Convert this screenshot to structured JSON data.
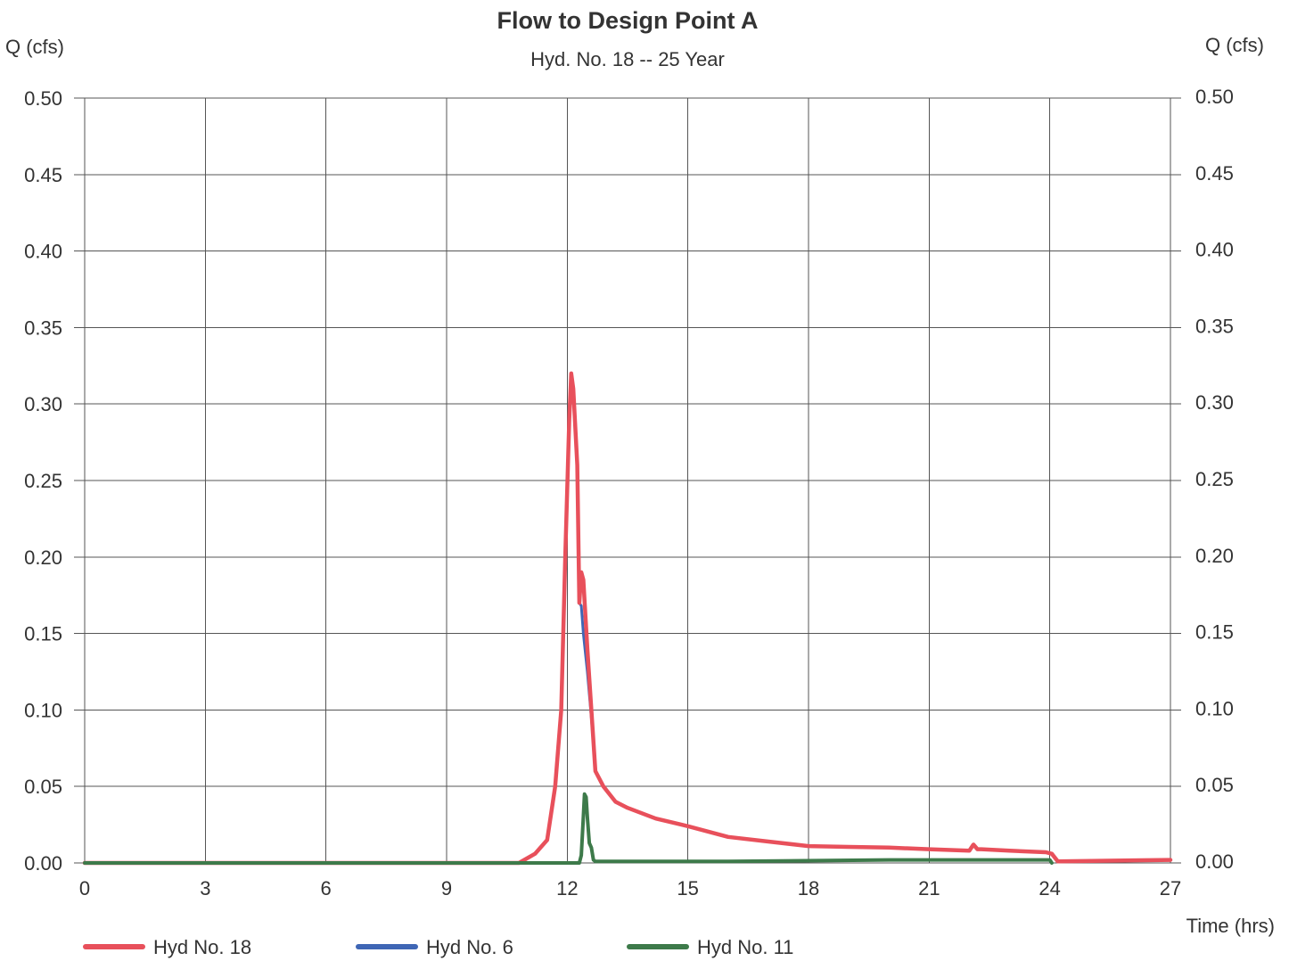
{
  "chart_data": {
    "type": "line",
    "title": "Flow to Design Point A",
    "subtitle": "Hyd. No. 18 -- 25 Year",
    "ylabel_left": "Q (cfs)",
    "ylabel_right": "Q (cfs)",
    "xlabel": "Time (hrs)",
    "xlim": [
      0,
      27
    ],
    "ylim": [
      0,
      0.5
    ],
    "xticks": [
      0,
      3,
      6,
      9,
      12,
      15,
      18,
      21,
      24,
      27
    ],
    "yticks": [
      0.0,
      0.05,
      0.1,
      0.15,
      0.2,
      0.25,
      0.3,
      0.35,
      0.4,
      0.45,
      0.5
    ],
    "xtick_labels": [
      "0",
      "3",
      "6",
      "9",
      "12",
      "15",
      "18",
      "21",
      "24",
      "27"
    ],
    "ytick_labels": [
      "0.00",
      "0.05",
      "0.10",
      "0.15",
      "0.20",
      "0.25",
      "0.30",
      "0.35",
      "0.40",
      "0.45",
      "0.50"
    ],
    "grid": true,
    "legend_position": "bottom",
    "series": [
      {
        "name": "Hyd No. 18",
        "color": "#e8505b",
        "x": [
          0,
          10.8,
          11.2,
          11.5,
          11.7,
          11.85,
          11.95,
          12.05,
          12.1,
          12.15,
          12.25,
          12.3,
          12.35,
          12.4,
          12.5,
          12.6,
          12.7,
          12.9,
          13.2,
          13.5,
          14.2,
          15,
          16,
          17,
          18,
          19,
          20,
          21,
          22,
          22.1,
          22.2,
          22.3,
          23,
          23.9,
          24.05,
          24.2,
          27
        ],
        "y": [
          0,
          0,
          0.006,
          0.015,
          0.05,
          0.1,
          0.2,
          0.29,
          0.32,
          0.31,
          0.26,
          0.17,
          0.19,
          0.185,
          0.14,
          0.1,
          0.06,
          0.05,
          0.04,
          0.036,
          0.029,
          0.024,
          0.017,
          0.014,
          0.011,
          0.0105,
          0.01,
          0.009,
          0.008,
          0.012,
          0.009,
          0.009,
          0.008,
          0.007,
          0.006,
          0.001,
          0.002
        ]
      },
      {
        "name": "Hyd No. 6",
        "color": "#3f66b5",
        "x": [
          0,
          10.8,
          11.2,
          11.5,
          11.7,
          11.85,
          11.95,
          12.05,
          12.1,
          12.15,
          12.25,
          12.3,
          12.35,
          12.4,
          12.5,
          12.6,
          12.7,
          12.9,
          13.2,
          13.5,
          14.2,
          15,
          16,
          17,
          18,
          19,
          20,
          21,
          22,
          22.1,
          22.2,
          22.3,
          23,
          23.9,
          24.05,
          24.2,
          27
        ],
        "y": [
          0,
          0,
          0.006,
          0.015,
          0.05,
          0.1,
          0.2,
          0.29,
          0.32,
          0.31,
          0.26,
          0.17,
          0.168,
          0.15,
          0.125,
          0.095,
          0.06,
          0.05,
          0.04,
          0.036,
          0.029,
          0.024,
          0.017,
          0.014,
          0.011,
          0.0105,
          0.01,
          0.009,
          0.008,
          0.012,
          0.009,
          0.009,
          0.008,
          0.007,
          0.006,
          0.001,
          0.002
        ]
      },
      {
        "name": "Hyd No. 11",
        "color": "#3d7a4a",
        "x": [
          0,
          10.8,
          12.3,
          12.35,
          12.4,
          12.43,
          12.47,
          12.5,
          12.55,
          12.6,
          12.65,
          12.7,
          13,
          16,
          20,
          24,
          24.05
        ],
        "y": [
          0,
          0,
          0,
          0.005,
          0.03,
          0.045,
          0.043,
          0.03,
          0.013,
          0.01,
          0.002,
          0.001,
          0.001,
          0.001,
          0.002,
          0.002,
          0
        ]
      }
    ]
  }
}
